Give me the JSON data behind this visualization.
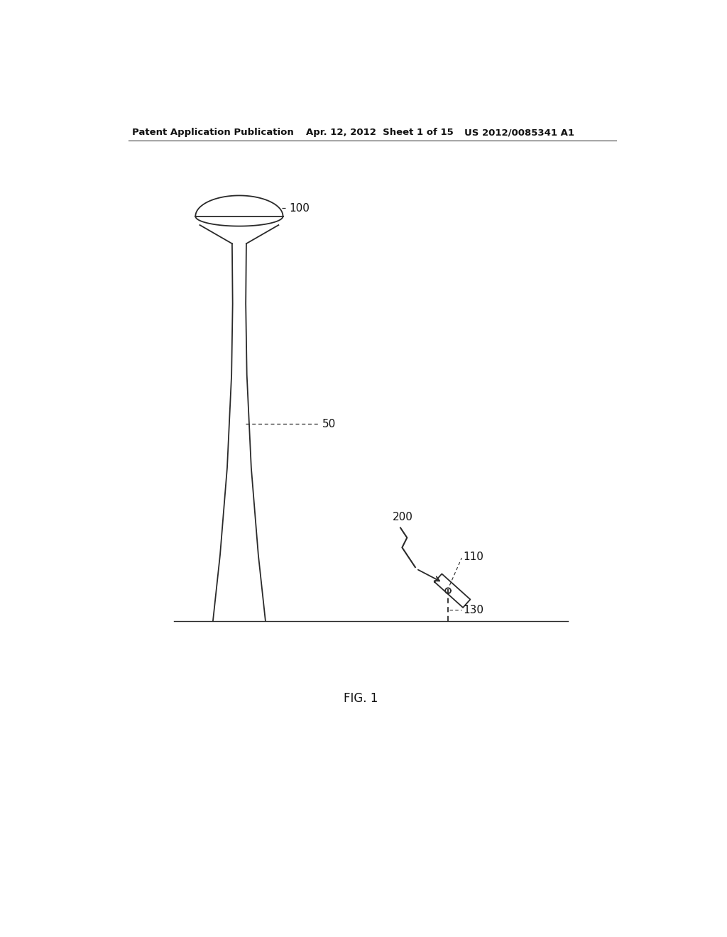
{
  "header_left": "Patent Application Publication",
  "header_mid": "Apr. 12, 2012  Sheet 1 of 15",
  "header_right": "US 2012/0085341 A1",
  "fig_label": "FIG. 1",
  "label_100": "100",
  "label_50": "50",
  "label_200": "200",
  "label_110": "110",
  "label_130": "130",
  "bg_color": "#ffffff",
  "line_color": "#2a2a2a",
  "header_fontsize": 9.5,
  "label_fontsize": 11
}
